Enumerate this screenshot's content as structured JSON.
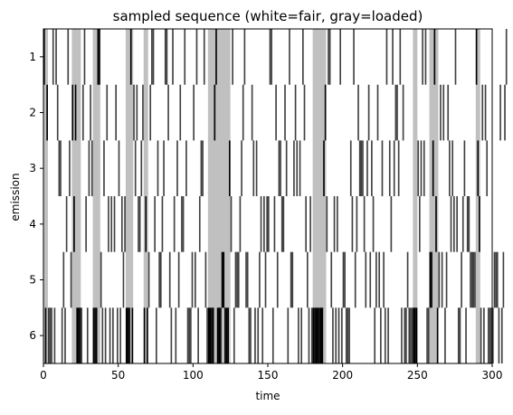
{
  "chart_data": {
    "type": "heatmap",
    "title": "sampled sequence (white=fair, gray=loaded)",
    "xlabel": "time",
    "ylabel": "emission",
    "xlim": [
      0,
      300
    ],
    "x_ticks": [
      0,
      50,
      100,
      150,
      200,
      250,
      300
    ],
    "y_categories": [
      1,
      2,
      3,
      4,
      5,
      6
    ],
    "colors": {
      "fair": "#ffffff",
      "loaded": "#c0c0c0",
      "emission_fair": "#404040",
      "emission_loaded": "#000000"
    },
    "loaded_intervals": [
      [
        0,
        3
      ],
      [
        19,
        25
      ],
      [
        33,
        38
      ],
      [
        55,
        60
      ],
      [
        67,
        70
      ],
      [
        110,
        125
      ],
      [
        180,
        189
      ],
      [
        247,
        250
      ],
      [
        258,
        264
      ],
      [
        289,
        292
      ]
    ],
    "emissions": [
      1,
      6,
      2,
      6,
      6,
      6,
      1,
      6,
      1,
      2,
      3,
      3,
      6,
      5,
      6,
      4,
      1,
      3,
      5,
      2,
      4,
      2,
      6,
      6,
      6,
      6,
      2,
      1,
      4,
      6,
      3,
      2,
      3,
      6,
      6,
      6,
      1,
      1,
      5,
      6,
      3,
      6,
      2,
      4,
      6,
      4,
      6,
      4,
      2,
      6,
      3,
      6,
      4,
      5,
      4,
      6,
      6,
      6,
      1,
      6,
      2,
      3,
      2,
      4,
      4,
      3,
      2,
      6,
      4,
      6,
      5,
      2,
      1,
      1,
      4,
      6,
      3,
      5,
      5,
      4,
      3,
      1,
      1,
      2,
      5,
      6,
      1,
      4,
      6,
      3,
      5,
      2,
      4,
      4,
      1,
      3,
      6,
      6,
      6,
      5,
      2,
      5,
      1,
      6,
      4,
      3,
      3,
      1,
      5,
      6,
      6,
      6,
      6,
      6,
      2,
      1,
      6,
      6,
      6,
      5,
      5,
      6,
      6,
      6,
      3,
      4,
      1,
      6,
      5,
      5,
      5,
      4,
      3,
      2,
      1,
      5,
      5,
      6,
      6,
      2,
      3,
      6,
      3,
      6,
      5,
      4,
      6,
      4,
      5,
      4,
      4,
      1,
      1,
      6,
      4,
      2,
      5,
      3,
      3,
      4,
      4,
      2,
      3,
      6,
      1,
      5,
      5,
      3,
      2,
      3,
      6,
      3,
      6,
      1,
      2,
      4,
      5,
      6,
      4,
      6,
      6,
      6,
      6,
      6,
      6,
      6,
      6,
      3,
      2,
      4,
      1,
      1,
      5,
      6,
      4,
      6,
      4,
      6,
      1,
      6,
      5,
      5,
      6,
      6,
      6,
      3,
      4,
      1,
      5,
      4,
      2,
      3,
      3,
      3,
      4,
      5,
      3,
      2,
      5,
      3,
      4,
      6,
      5,
      2,
      5,
      6,
      3,
      5,
      6,
      1,
      6,
      3,
      4,
      1,
      3,
      2,
      2,
      3,
      1,
      6,
      2,
      6,
      6,
      5,
      6,
      6,
      6,
      6,
      6,
      6,
      3,
      4,
      3,
      1,
      3,
      1,
      6,
      6,
      5,
      5,
      3,
      1,
      4,
      6,
      5,
      2,
      5,
      2,
      6,
      5,
      2,
      3,
      4,
      3,
      4,
      1,
      4,
      6,
      6,
      5,
      4,
      3,
      6,
      4,
      4,
      5,
      5,
      5,
      5,
      1,
      3,
      4,
      6,
      2,
      6,
      2,
      3,
      6,
      6,
      6,
      6,
      5,
      5,
      5,
      6,
      2,
      6,
      5,
      2,
      1
    ]
  }
}
